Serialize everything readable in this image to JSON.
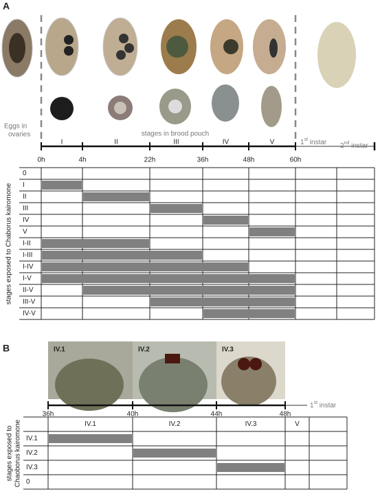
{
  "panel_a": {
    "label": "A",
    "eggs_label": [
      "Eggs in",
      "ovaries"
    ],
    "brood_label": "stages in brood pouch",
    "stages": [
      "I",
      "II",
      "III",
      "IV",
      "V"
    ],
    "instars": [
      [
        "1",
        "st",
        " instar"
      ],
      [
        "2",
        "nd",
        " instar"
      ]
    ],
    "times": [
      "0h",
      "4h",
      "22h",
      "36h",
      "48h",
      "60h"
    ],
    "y_axis_label": "stages exposed to Chaborus kairomone",
    "rows": [
      "0",
      "I",
      "II",
      "III",
      "IV",
      "V",
      "I-II",
      "I-III",
      "I-IV",
      "I-V",
      "II-V",
      "III-V",
      "IV-V"
    ]
  },
  "panel_b": {
    "label": "B",
    "photos": [
      "IV.1",
      "IV.2",
      "IV.3"
    ],
    "times": [
      "36h",
      "40h",
      "44h",
      "48h"
    ],
    "instar": [
      "1",
      "st",
      " instar"
    ],
    "columns": [
      "IV.1",
      "IV.2",
      "IV.3",
      "V"
    ],
    "y_axis_label": [
      "stages exposed to",
      "Chaoborus kairomone"
    ],
    "rows": [
      "IV.1",
      "IV.2",
      "IV.3",
      "0"
    ]
  }
}
